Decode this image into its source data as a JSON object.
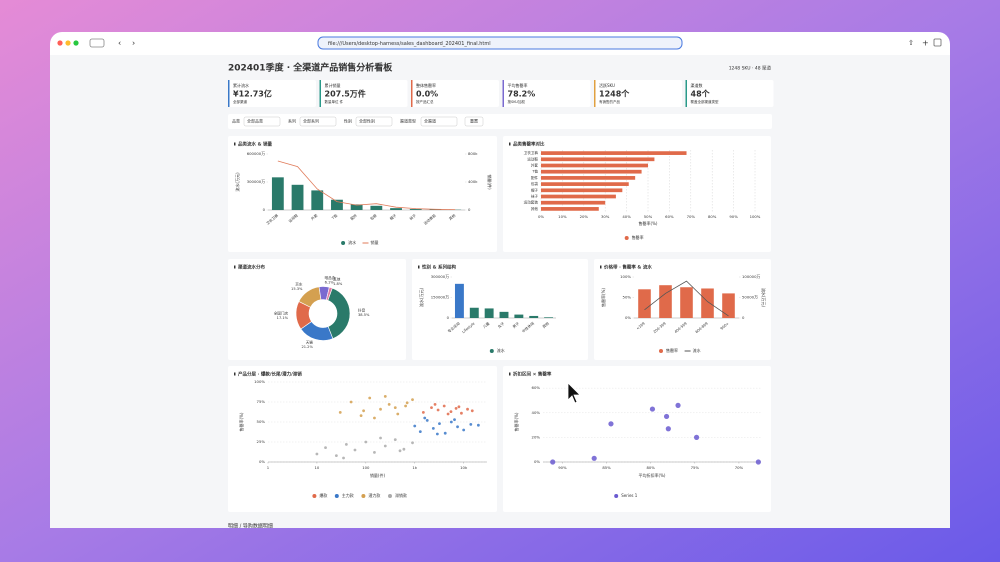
{
  "window": {
    "address": "file:///Users/desktop-harness/sales_dashboard_202401_final.html"
  },
  "header": {
    "title": "202401季度 · 全渠道产品销售分析看板",
    "meta": "1248 SKU · 48 渠道"
  },
  "kpis": [
    {
      "label": "累计流水",
      "value": "¥12.73亿",
      "note": "全部渠道",
      "color": "#3a78c8"
    },
    {
      "label": "累计销量",
      "value": "207.5万件",
      "note": "数量单位 件",
      "color": "#2a9a8a"
    },
    {
      "label": "整体售罄率",
      "value": "0.0%",
      "note": "按产品汇总",
      "color": "#e06a4a"
    },
    {
      "label": "平均售罄率",
      "value": "78.2%",
      "note": "按SKU加权",
      "color": "#7a6ad0"
    },
    {
      "label": "活跃SKU",
      "value": "1248个",
      "note": "有销售的产品",
      "color": "#e0a040"
    },
    {
      "label": "渠道数",
      "value": "48个",
      "note": "覆盖全部渠道类型",
      "color": "#2a9a8a"
    }
  ],
  "filters": {
    "items": [
      {
        "label": "品类",
        "value": "全部品类"
      },
      {
        "label": "系列",
        "value": "全部系列"
      },
      {
        "label": "性别",
        "value": "全部性别"
      },
      {
        "label": "渠道类型",
        "value": "全渠道"
      }
    ],
    "reset": "重置"
  },
  "chart_data": [
    {
      "type": "combo",
      "title": "品类流水 & 销量",
      "categories": [
        "卫衣卫裤",
        "运动鞋",
        "外套",
        "T恤",
        "配件",
        "包袋",
        "帽子",
        "袜子",
        "运动套装",
        "其他"
      ],
      "series": [
        {
          "name": "流水",
          "color": "#2a7a6a",
          "mark": "bar",
          "values": [
            350000,
            270000,
            210000,
            110000,
            60000,
            45000,
            20000,
            10000,
            6000,
            3000
          ]
        },
        {
          "name": "销量",
          "color": "#e07b5a",
          "mark": "line",
          "axis": "y2",
          "values": [
            700000,
            620000,
            300000,
            120000,
            70000,
            90000,
            40000,
            20000,
            10000,
            5000
          ]
        }
      ],
      "ylim": [
        0,
        600000
      ],
      "yticks": [
        0,
        {
          "value": 300000,
          "label": "300000万"
        },
        {
          "value": 600000,
          "label": "600000万"
        }
      ],
      "y2lim": [
        0,
        800000
      ],
      "y2ticks": [
        0,
        {
          "value": 400000,
          "label": "400k"
        },
        {
          "value": 800000,
          "label": "800k"
        }
      ],
      "ylabel": "流水(万元)",
      "y2label": "销量(件)",
      "grid": false
    },
    {
      "type": "hbar",
      "title": "品类售罄率对比",
      "categories": [
        "卫衣卫裤",
        "运动鞋",
        "外套",
        "T恤",
        "配件",
        "包袋",
        "帽子",
        "袜子",
        "运动套装",
        "其他"
      ],
      "series": [
        {
          "name": "售罄率",
          "color": "#e06a4a",
          "values": [
            68,
            53,
            50,
            47,
            44,
            41,
            38,
            35,
            30,
            27
          ]
        }
      ],
      "xlim": [
        0,
        100
      ],
      "xticks": [
        {
          "value": 0,
          "label": "0%"
        },
        {
          "value": 10,
          "label": "10%"
        },
        {
          "value": 20,
          "label": "20%"
        },
        {
          "value": 30,
          "label": "30%"
        },
        {
          "value": 40,
          "label": "40%"
        },
        {
          "value": 50,
          "label": "50%"
        },
        {
          "value": 60,
          "label": "60%"
        },
        {
          "value": 70,
          "label": "70%"
        },
        {
          "value": 80,
          "label": "80%"
        },
        {
          "value": 90,
          "label": "90%"
        },
        {
          "value": 100,
          "label": "100%"
        }
      ],
      "xlabel": "售罄率(%)",
      "grid": true
    },
    {
      "type": "donut",
      "title": "渠道流水分布",
      "categories": [
        "抖音",
        "天猫",
        "全国门店",
        "京东",
        "唯品会",
        "其他"
      ],
      "values": [
        38.5,
        21.2,
        17.1,
        15.3,
        6.1,
        1.8
      ],
      "value_labels": [
        "38.5%",
        "21.2%",
        "17.1%",
        "15.3%",
        "6.1%",
        "1.8%"
      ],
      "colors": [
        "#2a7a6a",
        "#3a78c8",
        "#e06a4a",
        "#d4a050",
        "#7a6ad0",
        "#e07aa0"
      ]
    },
    {
      "type": "bar",
      "title": "性别 & 系列结构",
      "categories": [
        "专业运动",
        "Lifestyle",
        "儿童",
        "女子",
        "男子",
        "中性休闲",
        "其他"
      ],
      "series": [
        {
          "name": "流水",
          "color": "#2a7a6a",
          "mark": "bar",
          "colors": [
            "#3a78c8",
            "#2a7a6a",
            "#2a7a6a",
            "#2a7a6a",
            "#2a7a6a",
            "#2a7a6a",
            "#2a7a6a"
          ],
          "values": [
            250000,
            75000,
            70000,
            45000,
            25000,
            15000,
            5000
          ]
        }
      ],
      "ylim": [
        0,
        300000
      ],
      "yticks": [
        0,
        {
          "value": 150000,
          "label": "150000万"
        },
        {
          "value": 300000,
          "label": "300000万"
        }
      ],
      "ylabel": "流水(万元)",
      "grid": false
    },
    {
      "type": "combo",
      "title": "价格带 · 售罄率 & 流水",
      "categories": [
        "<199",
        "200-399",
        "400-599",
        "600-899",
        "900+"
      ],
      "series": [
        {
          "name": "售罄率",
          "color": "#e06a4a",
          "mark": "bar",
          "values": [
            70,
            80,
            75,
            72,
            60
          ]
        },
        {
          "name": "流水",
          "color": "#555555",
          "mark": "line",
          "axis": "y2",
          "values": [
            20000,
            60000,
            90000,
            40000,
            5000
          ]
        }
      ],
      "ylim": [
        0,
        100
      ],
      "yticks": [
        {
          "value": 0,
          "label": "0%"
        },
        {
          "value": 50,
          "label": "50%"
        },
        {
          "value": 100,
          "label": "100%"
        }
      ],
      "y2lim": [
        0,
        100000
      ],
      "y2ticks": [
        0,
        {
          "value": 50000,
          "label": "50000万"
        },
        {
          "value": 100000,
          "label": "100000万"
        }
      ],
      "ylabel": "售罄率(%)",
      "y2label": "流水(万元)",
      "grid": false
    },
    {
      "type": "scatter",
      "title": "产品分层 · 爆款/长尾/潜力/滞销",
      "log_x": true,
      "xlim": [
        1,
        30000
      ],
      "xticks": [
        1,
        10,
        100,
        {
          "value": 1000,
          "label": "1k"
        },
        {
          "value": 10000,
          "label": "10k"
        }
      ],
      "ylim": [
        0,
        100
      ],
      "yticks": [
        {
          "value": 0,
          "label": "0%"
        },
        {
          "value": 25,
          "label": "25%"
        },
        {
          "value": 50,
          "label": "50%"
        },
        {
          "value": 75,
          "label": "75%"
        },
        {
          "value": 100,
          "label": "100%"
        }
      ],
      "xlabel": "销量(件)",
      "ylabel": "售罄率(%)",
      "grid": true,
      "point_size": 1.4,
      "series": [
        {
          "name": "爆款",
          "color": "#e06a4a",
          "x": [
            1500,
            2200,
            3000,
            4000,
            5500,
            7000,
            9000,
            12000,
            15000,
            2600,
            4800,
            8000
          ],
          "y": [
            62,
            68,
            65,
            70,
            63,
            67,
            61,
            66,
            64,
            72,
            60,
            69
          ]
        },
        {
          "name": "主力款",
          "color": "#3a78c8",
          "x": [
            1000,
            1300,
            1800,
            2400,
            3200,
            4200,
            5600,
            7500,
            10000,
            14000,
            1600,
            2900,
            6500,
            20000
          ],
          "y": [
            45,
            38,
            52,
            42,
            48,
            36,
            50,
            44,
            40,
            47,
            55,
            35,
            53,
            46
          ]
        },
        {
          "name": "潜力款",
          "color": "#d4a050",
          "x": [
            30,
            50,
            80,
            120,
            200,
            300,
            450,
            650,
            900,
            150,
            400,
            700,
            250,
            90
          ],
          "y": [
            62,
            75,
            58,
            80,
            66,
            72,
            60,
            70,
            78,
            55,
            68,
            74,
            82,
            64
          ]
        },
        {
          "name": "滞销款",
          "color": "#aaaaaa",
          "x": [
            10,
            15,
            25,
            40,
            60,
            100,
            150,
            250,
            400,
            600,
            900,
            35,
            200,
            500
          ],
          "y": [
            10,
            18,
            8,
            22,
            15,
            25,
            12,
            20,
            28,
            16,
            24,
            5,
            30,
            14
          ]
        }
      ]
    },
    {
      "type": "scatter",
      "title": "折扣区间 × 售罄率",
      "log_x": false,
      "xlim": [
        92.2,
        67.5
      ],
      "xticks": [
        {
          "value": 90,
          "label": "90%"
        },
        {
          "value": 85,
          "label": "85%"
        },
        {
          "value": 80,
          "label": "80%"
        },
        {
          "value": 75,
          "label": "75%"
        },
        {
          "value": 70,
          "label": "70%"
        }
      ],
      "ylim": [
        0,
        65
      ],
      "yticks": [
        {
          "value": 0,
          "label": "0%"
        },
        {
          "value": 20,
          "label": "20%"
        },
        {
          "value": 40,
          "label": "40%"
        },
        {
          "value": 60,
          "label": "60%"
        }
      ],
      "xlabel": "平均折扣率(%)",
      "ylabel": "售罄率(%)",
      "grid": true,
      "point_size": 2.6,
      "series": [
        {
          "name": "Series 1",
          "color": "#6a5ad0",
          "x": [
            91.1,
            86.4,
            84.5,
            79.8,
            78.2,
            78.0,
            76.9,
            74.8,
            67.8
          ],
          "y": [
            0,
            3,
            31,
            43,
            37,
            27,
            46,
            20,
            0
          ]
        }
      ]
    }
  ],
  "section_title": "明细 / 导购数据明细"
}
